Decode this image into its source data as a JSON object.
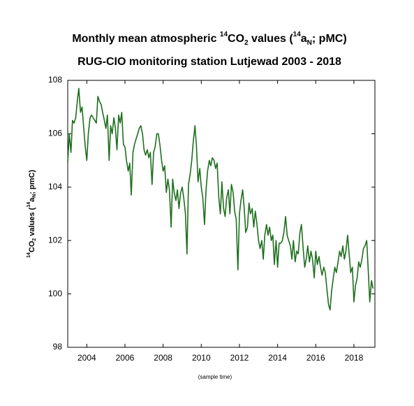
{
  "chart_data": {
    "type": "line",
    "title": [
      "Monthly mean atmospheric ",
      "14",
      "CO",
      "2",
      " values (",
      "14",
      "a",
      "N",
      "; pMC)"
    ],
    "subtitle": "RUG-CIO monitoring station Lutjewad 2003 - 2018",
    "ylabel": [
      "14",
      "CO",
      "2",
      " values (",
      "14",
      "a",
      "N",
      "; pmC)"
    ],
    "xlabel": "(sample time)",
    "xlim": [
      2003,
      2019.1
    ],
    "xticks": [
      2004,
      2006,
      2008,
      2010,
      2012,
      2014,
      2016,
      2018
    ],
    "ylim": [
      98,
      108
    ],
    "yticks": [
      98,
      100,
      102,
      104,
      106,
      108
    ],
    "x": [
      2003.0,
      2003.08,
      2003.17,
      2003.25,
      2003.33,
      2003.42,
      2003.5,
      2003.58,
      2003.67,
      2003.75,
      2003.83,
      2003.92,
      2004.0,
      2004.08,
      2004.17,
      2004.25,
      2004.33,
      2004.42,
      2004.5,
      2004.58,
      2004.67,
      2004.75,
      2004.83,
      2004.92,
      2005.0,
      2005.08,
      2005.17,
      2005.25,
      2005.33,
      2005.42,
      2005.5,
      2005.58,
      2005.67,
      2005.75,
      2005.83,
      2005.92,
      2006.0,
      2006.08,
      2006.17,
      2006.25,
      2006.33,
      2006.42,
      2006.5,
      2006.58,
      2006.67,
      2006.75,
      2006.83,
      2006.92,
      2007.0,
      2007.08,
      2007.17,
      2007.25,
      2007.33,
      2007.42,
      2007.5,
      2007.58,
      2007.67,
      2007.75,
      2007.83,
      2007.92,
      2008.0,
      2008.08,
      2008.17,
      2008.25,
      2008.33,
      2008.42,
      2008.5,
      2008.58,
      2008.67,
      2008.75,
      2008.83,
      2008.92,
      2009.0,
      2009.08,
      2009.17,
      2009.25,
      2009.33,
      2009.42,
      2009.5,
      2009.58,
      2009.67,
      2009.75,
      2009.83,
      2009.92,
      2010.0,
      2010.08,
      2010.17,
      2010.25,
      2010.33,
      2010.42,
      2010.5,
      2010.58,
      2010.67,
      2010.75,
      2010.83,
      2010.92,
      2011.0,
      2011.08,
      2011.17,
      2011.25,
      2011.33,
      2011.42,
      2011.5,
      2011.58,
      2011.67,
      2011.75,
      2011.83,
      2011.92,
      2012.0,
      2012.08,
      2012.17,
      2012.25,
      2012.33,
      2012.42,
      2012.5,
      2012.58,
      2012.67,
      2012.75,
      2012.83,
      2012.92,
      2013.0,
      2013.08,
      2013.17,
      2013.25,
      2013.33,
      2013.42,
      2013.5,
      2013.58,
      2013.67,
      2013.75,
      2013.83,
      2013.92,
      2014.0,
      2014.08,
      2014.17,
      2014.25,
      2014.33,
      2014.42,
      2014.5,
      2014.58,
      2014.67,
      2014.75,
      2014.83,
      2014.92,
      2015.0,
      2015.08,
      2015.17,
      2015.25,
      2015.33,
      2015.42,
      2015.5,
      2015.58,
      2015.67,
      2015.75,
      2015.83,
      2015.92,
      2016.0,
      2016.08,
      2016.17,
      2016.25,
      2016.33,
      2016.42,
      2016.5,
      2016.58,
      2016.67,
      2016.75,
      2016.83,
      2016.92,
      2017.0,
      2017.08,
      2017.17,
      2017.25,
      2017.33,
      2017.42,
      2017.5,
      2017.58,
      2017.67,
      2017.75,
      2017.83,
      2017.92,
      2018.0,
      2018.08,
      2018.17,
      2018.25,
      2018.33,
      2018.42,
      2018.5,
      2018.58,
      2018.67,
      2018.75,
      2018.83,
      2018.92,
      2019.0
    ],
    "series": [
      {
        "name": "14CO2",
        "color": "#1e6e1e",
        "values": [
          104.9,
          106.0,
          105.3,
          106.5,
          106.4,
          106.6,
          107.2,
          107.7,
          106.8,
          107.0,
          106.3,
          105.5,
          105.0,
          106.0,
          106.6,
          106.7,
          106.6,
          106.5,
          106.4,
          107.4,
          107.2,
          107.1,
          106.8,
          106.5,
          106.2,
          106.7,
          105.0,
          106.3,
          106.0,
          106.6,
          106.2,
          105.4,
          106.7,
          106.4,
          106.8,
          105.6,
          105.5,
          105.0,
          104.6,
          104.9,
          103.7,
          105.3,
          105.6,
          105.8,
          106.0,
          106.2,
          106.3,
          106.0,
          105.4,
          105.2,
          105.4,
          105.1,
          105.3,
          104.1,
          105.3,
          105.5,
          106.0,
          106.0,
          105.6,
          105.0,
          104.6,
          104.8,
          103.8,
          104.3,
          103.9,
          102.5,
          104.3,
          103.8,
          103.5,
          103.9,
          103.2,
          103.8,
          104.0,
          103.6,
          103.0,
          101.5,
          104.1,
          104.5,
          105.0,
          105.7,
          106.3,
          105.5,
          104.2,
          104.7,
          104.0,
          103.6,
          102.6,
          103.9,
          104.6,
          105.0,
          104.8,
          105.1,
          105.0,
          104.7,
          104.9,
          103.6,
          103.0,
          104.2,
          103.2,
          102.9,
          103.6,
          103.9,
          103.0,
          104.1,
          103.8,
          103.1,
          102.8,
          100.9,
          103.0,
          103.5,
          103.9,
          103.2,
          102.3,
          102.5,
          103.4,
          103.0,
          103.2,
          102.5,
          103.1,
          102.6,
          102.0,
          101.7,
          102.0,
          101.3,
          102.2,
          102.6,
          102.2,
          102.5,
          102.0,
          102.2,
          101.1,
          102.0,
          101.0,
          101.9,
          101.9,
          102.0,
          102.3,
          102.9,
          102.2,
          102.0,
          101.8,
          101.3,
          102.0,
          101.2,
          101.6,
          101.5,
          102.3,
          102.6,
          101.8,
          101.0,
          101.3,
          101.8,
          101.2,
          101.6,
          101.3,
          100.6,
          101.6,
          101.1,
          101.4,
          101.0,
          100.7,
          101.0,
          100.8,
          100.2,
          99.6,
          99.4,
          100.1,
          100.6,
          101.0,
          100.8,
          101.2,
          101.6,
          101.4,
          101.8,
          101.3,
          101.6,
          102.2,
          101.5,
          100.8,
          101.0,
          99.7,
          100.3,
          100.6,
          101.2,
          101.0,
          101.3,
          101.7,
          101.8,
          102.0,
          100.9,
          99.7,
          100.5,
          100.2
        ]
      }
    ]
  }
}
